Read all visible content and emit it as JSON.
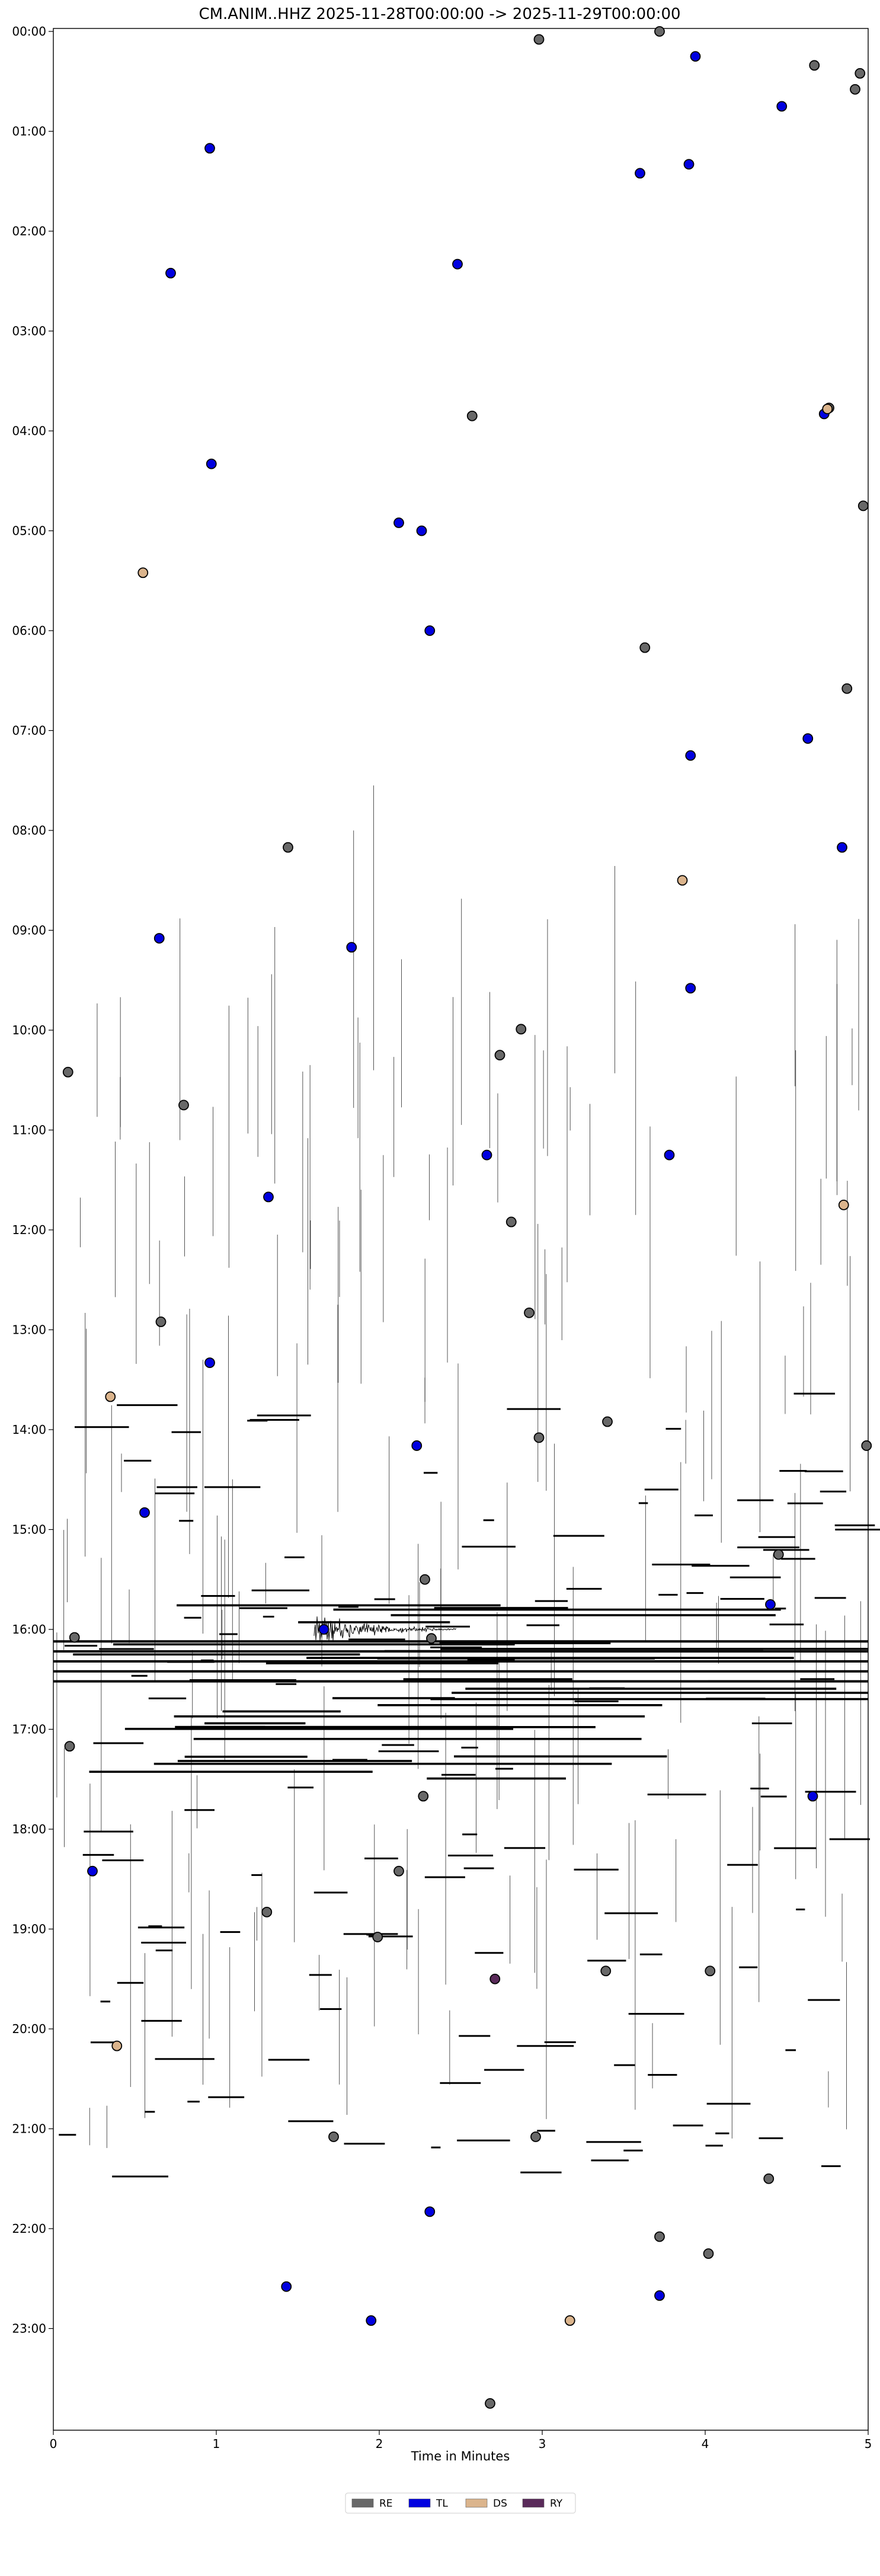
{
  "chart_data": {
    "type": "scatter",
    "title": "CM.ANIM..HHZ  2025-11-28T00:00:00 -> 2025-11-29T00:00:00",
    "xlabel": "Time in Minutes",
    "ylabel": "",
    "xlim": [
      0,
      5
    ],
    "ylim_hours": [
      0,
      24
    ],
    "y_inverted": true,
    "x_ticks": [
      "0",
      "1",
      "2",
      "3",
      "4",
      "5"
    ],
    "y_ticks": [
      "00:00",
      "01:00",
      "02:00",
      "03:00",
      "04:00",
      "05:00",
      "06:00",
      "07:00",
      "08:00",
      "09:00",
      "10:00",
      "11:00",
      "12:00",
      "13:00",
      "14:00",
      "15:00",
      "16:00",
      "17:00",
      "18:00",
      "19:00",
      "20:00",
      "21:00",
      "22:00",
      "23:00"
    ],
    "grid": false,
    "legend_position": "bottom-center",
    "series": [
      {
        "name": "RE",
        "color": "#686868",
        "points": [
          {
            "x": 3.72,
            "y": 0.0
          },
          {
            "x": 2.98,
            "y": 0.08
          },
          {
            "x": 4.67,
            "y": 0.34
          },
          {
            "x": 4.95,
            "y": 0.42
          },
          {
            "x": 4.92,
            "y": 0.58
          },
          {
            "x": 2.57,
            "y": 3.85
          },
          {
            "x": 4.76,
            "y": 3.77
          },
          {
            "x": 4.97,
            "y": 4.75
          },
          {
            "x": 3.63,
            "y": 6.17
          },
          {
            "x": 4.87,
            "y": 6.58
          },
          {
            "x": 1.44,
            "y": 8.17
          },
          {
            "x": 2.87,
            "y": 9.99
          },
          {
            "x": 2.74,
            "y": 10.25
          },
          {
            "x": 0.09,
            "y": 10.42
          },
          {
            "x": 0.8,
            "y": 10.75
          },
          {
            "x": 2.81,
            "y": 11.92
          },
          {
            "x": 2.92,
            "y": 12.83
          },
          {
            "x": 0.66,
            "y": 12.92
          },
          {
            "x": 3.4,
            "y": 13.92
          },
          {
            "x": 2.98,
            "y": 14.08
          },
          {
            "x": 4.99,
            "y": 14.16
          },
          {
            "x": 4.45,
            "y": 15.25
          },
          {
            "x": 2.28,
            "y": 15.5
          },
          {
            "x": 0.13,
            "y": 16.08
          },
          {
            "x": 2.32,
            "y": 16.09
          },
          {
            "x": 0.1,
            "y": 17.17
          },
          {
            "x": 2.27,
            "y": 17.67
          },
          {
            "x": 2.12,
            "y": 18.42
          },
          {
            "x": 1.31,
            "y": 18.83
          },
          {
            "x": 1.99,
            "y": 19.08
          },
          {
            "x": 3.39,
            "y": 19.42
          },
          {
            "x": 4.03,
            "y": 19.42
          },
          {
            "x": 1.72,
            "y": 21.08
          },
          {
            "x": 2.96,
            "y": 21.08
          },
          {
            "x": 4.39,
            "y": 21.5
          },
          {
            "x": 3.72,
            "y": 22.08
          },
          {
            "x": 4.02,
            "y": 22.25
          },
          {
            "x": 2.68,
            "y": 23.75
          }
        ]
      },
      {
        "name": "TL",
        "color": "#0000e0",
        "points": [
          {
            "x": 3.94,
            "y": 0.25
          },
          {
            "x": 4.47,
            "y": 0.75
          },
          {
            "x": 0.96,
            "y": 1.17
          },
          {
            "x": 3.9,
            "y": 1.33
          },
          {
            "x": 3.6,
            "y": 1.42
          },
          {
            "x": 0.72,
            "y": 2.42
          },
          {
            "x": 2.48,
            "y": 2.33
          },
          {
            "x": 4.73,
            "y": 3.83
          },
          {
            "x": 0.97,
            "y": 4.33
          },
          {
            "x": 2.12,
            "y": 4.92
          },
          {
            "x": 2.26,
            "y": 5.0
          },
          {
            "x": 2.31,
            "y": 6.0
          },
          {
            "x": 3.91,
            "y": 7.25
          },
          {
            "x": 4.63,
            "y": 7.08
          },
          {
            "x": 4.84,
            "y": 8.17
          },
          {
            "x": 0.65,
            "y": 9.08
          },
          {
            "x": 1.83,
            "y": 9.17
          },
          {
            "x": 3.91,
            "y": 9.58
          },
          {
            "x": 2.66,
            "y": 11.25
          },
          {
            "x": 3.78,
            "y": 11.25
          },
          {
            "x": 1.32,
            "y": 11.67
          },
          {
            "x": 0.96,
            "y": 13.33
          },
          {
            "x": 2.23,
            "y": 14.16
          },
          {
            "x": 0.56,
            "y": 14.83
          },
          {
            "x": 4.4,
            "y": 15.75
          },
          {
            "x": 1.66,
            "y": 16.0
          },
          {
            "x": 4.66,
            "y": 17.67
          },
          {
            "x": 0.24,
            "y": 18.42
          },
          {
            "x": 2.31,
            "y": 21.83
          },
          {
            "x": 1.43,
            "y": 22.58
          },
          {
            "x": 1.95,
            "y": 22.92
          },
          {
            "x": 3.72,
            "y": 22.67
          }
        ]
      },
      {
        "name": "DS",
        "color": "#dbb48c",
        "points": [
          {
            "x": 0.55,
            "y": 5.42
          },
          {
            "x": 4.75,
            "y": 3.78
          },
          {
            "x": 3.86,
            "y": 8.5
          },
          {
            "x": 4.85,
            "y": 11.75
          },
          {
            "x": 0.35,
            "y": 13.67
          },
          {
            "x": 0.39,
            "y": 20.17
          },
          {
            "x": 3.17,
            "y": 22.92
          }
        ]
      },
      {
        "name": "RY",
        "color": "#5a2a5a",
        "points": [
          {
            "x": 2.71,
            "y": 19.5
          }
        ]
      }
    ],
    "trace_color": "#000000"
  }
}
